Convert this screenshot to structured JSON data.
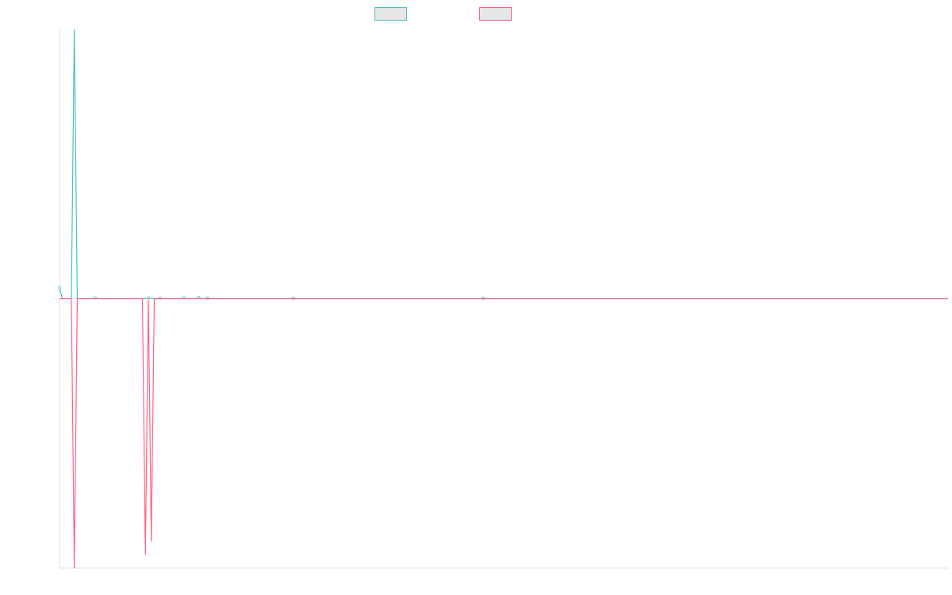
{
  "chart_data": {
    "type": "line",
    "title": "",
    "xlabel": "",
    "ylabel": "",
    "grid": false,
    "legend_position": "top-center",
    "ylim": [
      -1,
      1
    ],
    "n_points": 301,
    "series": [
      {
        "color": "#4bc0c0",
        "fill": "#e6e6e6",
        "spikes": [
          [
            0,
            0.04
          ],
          [
            1,
            0.0
          ],
          [
            5,
            1.0
          ],
          [
            6,
            0.0
          ],
          [
            12,
            0.003
          ],
          [
            30,
            0.003
          ],
          [
            34,
            0.002
          ],
          [
            42,
            0.003
          ],
          [
            47,
            0.004
          ],
          [
            50,
            0.002
          ],
          [
            79,
            0.001
          ],
          [
            143,
            0.001
          ]
        ]
      },
      {
        "color": "#ff6384",
        "fill": "#e6e6e6",
        "spikes": [
          [
            5,
            -1.0
          ],
          [
            6,
            0.0
          ],
          [
            29,
            -0.95
          ],
          [
            30,
            0.0
          ],
          [
            31,
            -0.9
          ],
          [
            32,
            0.0
          ]
        ]
      }
    ]
  }
}
